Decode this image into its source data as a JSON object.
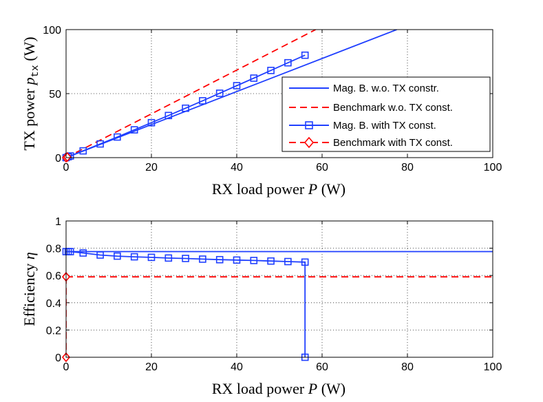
{
  "chart_data": [
    {
      "type": "line",
      "xlabel": "RX load power P (W)",
      "ylabel": "TX power p_tx (W)",
      "ylabel_main": "TX power ",
      "ylabel_var": "p",
      "ylabel_sub": "tx",
      "ylabel_unit": " (W)",
      "xlabel_main": "RX load power ",
      "xlabel_var": "P",
      "xlabel_unit": " (W)",
      "xlim": [
        0,
        100
      ],
      "ylim": [
        0,
        100
      ],
      "xticks": [
        0,
        20,
        40,
        60,
        80,
        100
      ],
      "yticks": [
        0,
        50,
        100
      ],
      "grid": true,
      "legend_position": "right",
      "series": [
        {
          "name": "Mag. B. w.o. TX constr.",
          "color": "#1f3fff",
          "style": "solid",
          "marker": "none",
          "x": [
            0,
            77.5
          ],
          "y": [
            0,
            100
          ]
        },
        {
          "name": "Benchmark w.o. TX const.",
          "color": "#ff0000",
          "style": "dashed",
          "marker": "none",
          "x": [
            0,
            58.5
          ],
          "y": [
            0,
            100
          ]
        },
        {
          "name": "Mag. B. with TX const.",
          "color": "#1f3fff",
          "style": "solid",
          "marker": "square",
          "x": [
            0,
            0.5,
            1,
            4,
            8,
            12,
            16,
            20,
            24,
            28,
            32,
            36,
            40,
            44,
            48,
            52,
            56
          ],
          "y": [
            0,
            0.7,
            1.3,
            5.3,
            10.7,
            16.1,
            21.7,
            27.3,
            32.9,
            38.6,
            44.4,
            50.3,
            56.2,
            62.1,
            68.1,
            74.1,
            80
          ]
        },
        {
          "name": "Benchmark with TX const.",
          "color": "#ff0000",
          "style": "dashed",
          "marker": "diamond",
          "x": [
            0,
            0.3
          ],
          "y": [
            0,
            0.5
          ]
        }
      ]
    },
    {
      "type": "line",
      "xlabel": "RX load power P (W)",
      "ylabel": "Efficiency η",
      "ylabel_main": "Efficiency ",
      "ylabel_var": "η",
      "xlabel_main": "RX load power ",
      "xlabel_var": "P",
      "xlabel_unit": " (W)",
      "xlim": [
        0,
        100
      ],
      "ylim": [
        0,
        1
      ],
      "xticks": [
        0,
        20,
        40,
        60,
        80,
        100
      ],
      "yticks": [
        0,
        0.2,
        0.4,
        0.6,
        0.8,
        1
      ],
      "grid": true,
      "series": [
        {
          "name": "Mag. B. w.o. TX constr.",
          "color": "#1f3fff",
          "style": "solid",
          "marker": "none",
          "x": [
            0,
            100
          ],
          "y": [
            0.775,
            0.775
          ]
        },
        {
          "name": "Benchmark w.o. TX const.",
          "color": "#ff0000",
          "style": "dashed",
          "marker": "none",
          "x": [
            0,
            100
          ],
          "y": [
            0.59,
            0.59
          ]
        },
        {
          "name": "Mag. B. with TX const.",
          "color": "#1f3fff",
          "style": "solid",
          "marker": "square",
          "x": [
            0,
            0.5,
            1,
            4,
            8,
            12,
            16,
            20,
            24,
            28,
            32,
            36,
            40,
            44,
            48,
            52,
            56,
            56
          ],
          "y": [
            0.775,
            0.775,
            0.775,
            0.765,
            0.75,
            0.742,
            0.737,
            0.733,
            0.728,
            0.725,
            0.72,
            0.716,
            0.713,
            0.71,
            0.706,
            0.702,
            0.698,
            0
          ]
        },
        {
          "name": "Benchmark with TX const.",
          "color": "#ff0000",
          "style": "dashed",
          "marker": "diamond",
          "x": [
            0,
            0
          ],
          "y": [
            0.59,
            0
          ]
        }
      ]
    }
  ]
}
